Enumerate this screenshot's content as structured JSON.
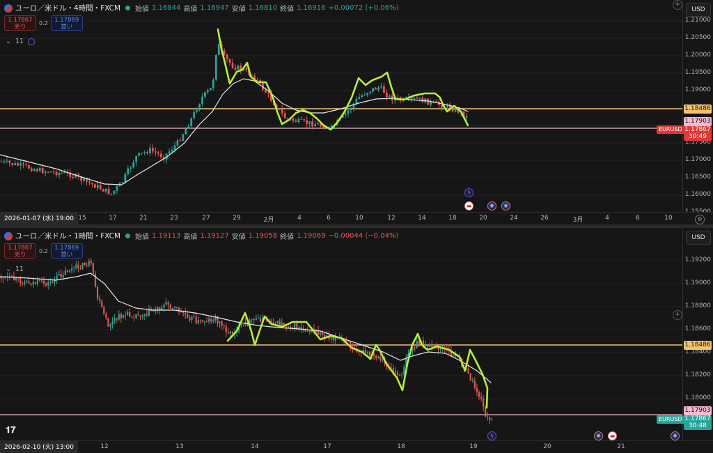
{
  "top": {
    "title": "ユーロ／米ドル・4時間・FXCM",
    "ohlc": [
      {
        "label": "始値",
        "value": "1.16844"
      },
      {
        "label": "高値",
        "value": "1.16947"
      },
      {
        "label": "安値",
        "value": "1.16810"
      },
      {
        "label": "終値",
        "value": "1.16916"
      }
    ],
    "change": "+0.00072 (+0.06%)",
    "change_dir": "up",
    "sell_price": "1.17867",
    "sell_label": "売り",
    "spread": "0.2",
    "buy_price": "1.17869",
    "buy_label": "買い",
    "indicator_count": "11",
    "currency": "USD",
    "price_ticks": [
      "1.21000",
      "1.20500",
      "1.20000",
      "1.19500",
      "1.19000",
      "1.18500",
      "1.18000",
      "1.17500",
      "1.17000",
      "1.16500",
      "1.16000",
      "1.15500"
    ],
    "levels": {
      "orange": "1.18486",
      "pink": "1.17903",
      "current": "1.17867",
      "countdown": "30:49",
      "symbol": "EURUSD"
    },
    "crosshair_date": "2026-01-07 (水)  19:00",
    "time_ticks": [
      "15",
      "17",
      "21",
      "23",
      "27",
      "29",
      "2月",
      "4",
      "6",
      "10",
      "12",
      "14",
      "18",
      "20",
      "24",
      "26",
      "3月",
      "4",
      "6",
      "10"
    ]
  },
  "bottom": {
    "title": "ユーロ／米ドル・1時間・FXCM",
    "ohlc": [
      {
        "label": "始値",
        "value": "1.19113"
      },
      {
        "label": "高値",
        "value": "1.19127"
      },
      {
        "label": "安値",
        "value": "1.19058"
      },
      {
        "label": "終値",
        "value": "1.19069"
      }
    ],
    "change": "−0.00044 (−0.04%)",
    "change_dir": "down",
    "sell_price": "1.17867",
    "sell_label": "売り",
    "spread": "0.2",
    "buy_price": "1.17869",
    "buy_label": "買い",
    "indicator_count": "11",
    "currency": "USD",
    "price_ticks": [
      "1.19200",
      "1.19000",
      "1.18800",
      "1.18600",
      "1.18400",
      "1.18200",
      "1.18000"
    ],
    "levels": {
      "orange": "1.18486",
      "pink": "1.17903",
      "current": "1.17867",
      "countdown": "30:48",
      "symbol": "EURUSD"
    },
    "crosshair_date": "2026-02-10 (火)  13:00",
    "time_ticks": [
      "12",
      "13",
      "14",
      "17",
      "18",
      "19",
      "20",
      "21"
    ]
  },
  "colors": {
    "bg": "#161616",
    "up": "#26a69a",
    "down": "#ef5350",
    "ma": "#e8e8e8",
    "drawing": "#b8f02a",
    "orange_line": "#f5c16b",
    "pink_line": "#f8bbd0"
  },
  "icons": [
    "symbol-icon",
    "indicator-icon",
    "event-bolt-icon",
    "event-eu-icon",
    "event-us-flag-icon",
    "settings-gear-icon",
    "plus-icon"
  ]
}
